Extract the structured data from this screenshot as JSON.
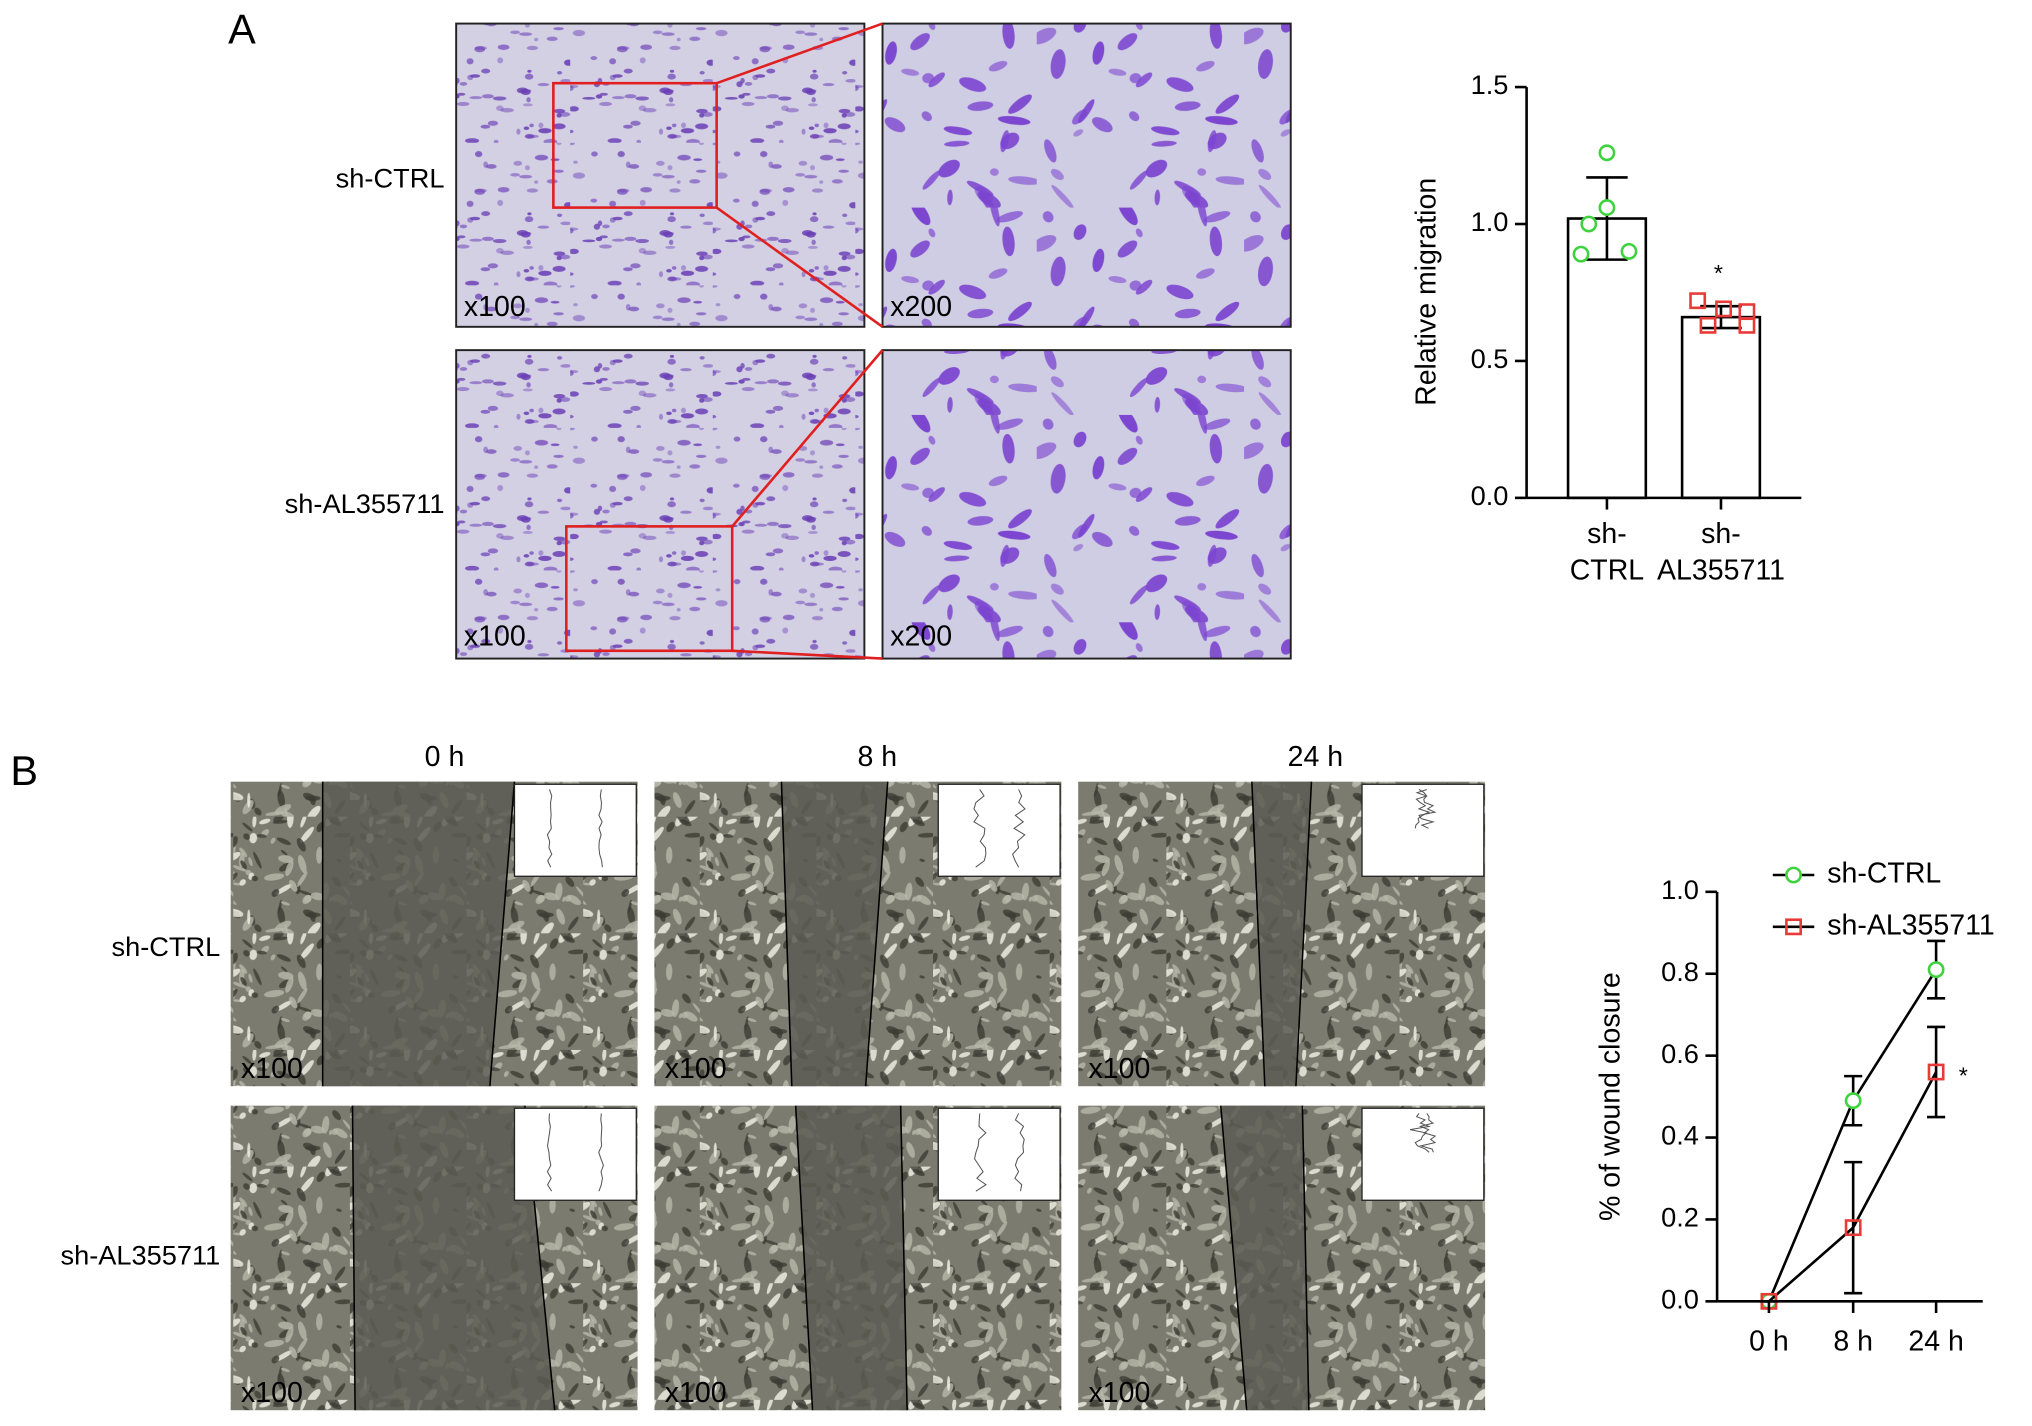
{
  "panel_a": {
    "label": "A",
    "row_labels": [
      "sh-CTRL",
      "sh-AL355711"
    ],
    "magnification_labels": [
      "x100",
      "x200",
      "x100",
      "x200"
    ]
  },
  "panel_b": {
    "label": "B",
    "column_labels": [
      "0 h",
      "8 h",
      "24 h"
    ],
    "row_labels": [
      "sh-CTRL",
      "sh-AL355711"
    ],
    "magnification_labels": [
      "x100",
      "x100",
      "x100",
      "x100",
      "x100",
      "x100"
    ]
  },
  "chart_data": [
    {
      "type": "bar",
      "ylabel": "Relative migration",
      "categories": [
        "sh-CTRL",
        "sh-AL355711"
      ],
      "values": [
        1.02,
        0.66
      ],
      "errors": [
        0.15,
        0.04
      ],
      "points": [
        [
          1.26,
          1.06,
          1.0,
          0.89,
          0.9
        ],
        [
          0.72,
          0.69,
          0.63,
          0.68,
          0.63
        ]
      ],
      "point_colors": [
        "#3fd23f",
        "#e83a36"
      ],
      "point_markers": [
        "circle",
        "square"
      ],
      "annotation": "*",
      "ylim": [
        0,
        1.5
      ],
      "yticks": [
        {
          "value": 0,
          "label": "0.0"
        },
        {
          "value": 0.5,
          "label": "0.5"
        },
        {
          "value": 1,
          "label": "1.0"
        },
        {
          "value": 1.5,
          "label": "1.5"
        }
      ]
    },
    {
      "type": "line",
      "ylabel": "% of wound closure",
      "categories": [
        "0 h",
        "8 h",
        "24 h"
      ],
      "series": [
        {
          "name": "sh-CTRL",
          "color": "#3fd23f",
          "marker": "circle",
          "values": [
            0,
            0.49,
            0.81
          ],
          "errors": [
            0,
            0.06,
            0.07
          ]
        },
        {
          "name": "sh-AL355711",
          "color": "#e83a36",
          "marker": "square",
          "values": [
            0,
            0.18,
            0.56
          ],
          "errors": [
            0,
            0.16,
            0.11
          ]
        }
      ],
      "line_color": "#000000",
      "annotation": "*",
      "legend": "top",
      "ylim": [
        0,
        1
      ],
      "yticks": [
        {
          "value": 0,
          "label": "0.0"
        },
        {
          "value": 0.2,
          "label": "0.2"
        },
        {
          "value": 0.4,
          "label": "0.4"
        },
        {
          "value": 0.6,
          "label": "0.6"
        },
        {
          "value": 0.8,
          "label": "0.8"
        },
        {
          "value": 1,
          "label": "1.0"
        }
      ]
    }
  ]
}
